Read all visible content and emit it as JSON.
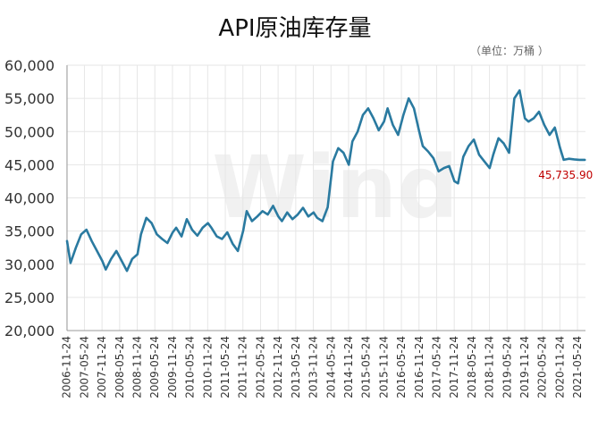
{
  "chart_data": {
    "type": "line",
    "title": "API原油库存量",
    "unit_label": "（单位：万桶 ）",
    "watermark": "Wind",
    "xlabel": "",
    "ylabel": "",
    "ylim": [
      20000,
      60000
    ],
    "y_ticks": [
      "20,000",
      "25,000",
      "30,000",
      "35,000",
      "40,000",
      "45,000",
      "50,000",
      "55,000",
      "60,000"
    ],
    "x_ticks": [
      "2006-11-24",
      "2007-05-24",
      "2007-11-24",
      "2008-05-24",
      "2008-11-24",
      "2009-05-24",
      "2009-11-24",
      "2010-05-24",
      "2010-11-24",
      "2011-05-24",
      "2011-11-24",
      "2012-05-24",
      "2012-11-24",
      "2013-05-24",
      "2013-11-24",
      "2014-05-24",
      "2014-11-24",
      "2015-05-24",
      "2015-11-24",
      "2016-05-24",
      "2016-11-24",
      "2017-05-24",
      "2017-11-24",
      "2018-05-24",
      "2018-11-24",
      "2019-05-24",
      "2019-11-24",
      "2020-05-24",
      "2020-11-24",
      "2021-05-24"
    ],
    "series": [
      {
        "name": "API原油库存量",
        "color": "#2a7aa0",
        "x": [
          2006.9,
          2007.0,
          2007.15,
          2007.3,
          2007.45,
          2007.6,
          2007.75,
          2007.9,
          2008.0,
          2008.15,
          2008.3,
          2008.45,
          2008.6,
          2008.75,
          2008.9,
          2009.0,
          2009.15,
          2009.3,
          2009.45,
          2009.6,
          2009.75,
          2009.9,
          2010.0,
          2010.15,
          2010.3,
          2010.45,
          2010.6,
          2010.75,
          2010.9,
          2011.0,
          2011.15,
          2011.3,
          2011.45,
          2011.6,
          2011.75,
          2011.9,
          2012.0,
          2012.15,
          2012.3,
          2012.45,
          2012.6,
          2012.75,
          2012.9,
          2013.0,
          2013.15,
          2013.3,
          2013.45,
          2013.6,
          2013.75,
          2013.9,
          2014.0,
          2014.15,
          2014.3,
          2014.45,
          2014.6,
          2014.75,
          2014.9,
          2015.0,
          2015.15,
          2015.3,
          2015.45,
          2015.6,
          2015.75,
          2015.9,
          2016.0,
          2016.15,
          2016.3,
          2016.45,
          2016.6,
          2016.75,
          2016.9,
          2017.0,
          2017.15,
          2017.3,
          2017.45,
          2017.6,
          2017.75,
          2017.9,
          2018.0,
          2018.15,
          2018.3,
          2018.45,
          2018.6,
          2018.75,
          2018.9,
          2019.0,
          2019.15,
          2019.3,
          2019.45,
          2019.6,
          2019.75,
          2019.9,
          2020.0,
          2020.15,
          2020.3,
          2020.45,
          2020.6,
          2020.75,
          2020.9,
          2021.0,
          2021.15,
          2021.3,
          2021.45,
          2021.6
        ],
        "values": [
          33500,
          30200,
          32500,
          34500,
          35200,
          33500,
          32000,
          30500,
          29200,
          30800,
          32000,
          30500,
          29000,
          30800,
          31500,
          34500,
          37000,
          36200,
          34500,
          33800,
          33200,
          34800,
          35500,
          34200,
          36800,
          35200,
          34300,
          35500,
          36200,
          35500,
          34200,
          33800,
          34800,
          33100,
          32000,
          35000,
          38000,
          36500,
          37200,
          38000,
          37500,
          38800,
          37200,
          36500,
          37800,
          36800,
          37500,
          38500,
          37200,
          37800,
          37000,
          36500,
          38600,
          45500,
          47500,
          46800,
          45000,
          48500,
          50000,
          52500,
          53500,
          52000,
          50200,
          51500,
          53500,
          51000,
          49500,
          52500,
          55000,
          53500,
          50000,
          47800,
          47000,
          46000,
          44000,
          44500,
          44800,
          42500,
          42200,
          46200,
          47800,
          48800,
          46500,
          45500,
          44500,
          46500,
          49000,
          48200,
          46800,
          55000,
          56200,
          52000,
          51500,
          52000,
          53000,
          51000,
          49500,
          50600,
          47500,
          45735.9,
          45900,
          45800,
          45735.9,
          45735.9
        ],
        "last_value_label": "45,735.90"
      }
    ]
  }
}
